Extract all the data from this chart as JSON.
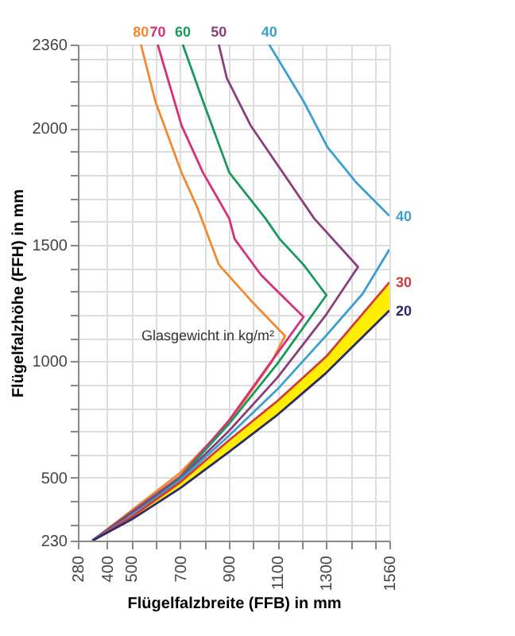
{
  "chart_data": {
    "type": "line",
    "xlabel": "Flügelfalzbreite (FFB) in mm",
    "ylabel": "Flügelfalzhöhe (FFH) in mm",
    "xlim": [
      280,
      1560
    ],
    "ylim": [
      230,
      2360
    ],
    "xticks": [
      280,
      400,
      500,
      {
        "value": 600,
        "label": null
      },
      700,
      {
        "value": 800,
        "label": null
      },
      900,
      {
        "value": 1000,
        "label": null
      },
      1100,
      {
        "value": 1200,
        "label": null
      },
      1300,
      {
        "value": 1400,
        "label": null
      },
      {
        "value": 1500,
        "label": null
      },
      1560
    ],
    "yticks": [
      230,
      {
        "value": 300,
        "label": null
      },
      {
        "value": 400,
        "label": null
      },
      500,
      {
        "value": 600,
        "label": null
      },
      {
        "value": 700,
        "label": null
      },
      {
        "value": 800,
        "label": null
      },
      {
        "value": 900,
        "label": null
      },
      1000,
      {
        "value": 1100,
        "label": null
      },
      {
        "value": 1200,
        "label": null
      },
      {
        "value": 1300,
        "label": null
      },
      {
        "value": 1400,
        "label": null
      },
      1500,
      {
        "value": 1600,
        "label": null
      },
      {
        "value": 1700,
        "label": null
      },
      {
        "value": 1800,
        "label": null
      },
      {
        "value": 1900,
        "label": null
      },
      2000,
      {
        "value": 2100,
        "label": null
      },
      {
        "value": 2200,
        "label": null
      },
      {
        "value": 2300,
        "label": null
      },
      2360
    ],
    "grid": true,
    "marker": "none",
    "line_style": "solid",
    "legend": false,
    "annotations": [
      "Glasgewicht in kg/m²"
    ],
    "series": [
      {
        "name": "80",
        "color": "#f28a30",
        "x": [
          539,
          598,
          706,
          772,
          859,
          990,
          1131,
          1077,
          902,
          696,
          340
        ],
        "values": [
          2360,
          2117,
          1810,
          1657,
          1415,
          1262,
          1109,
          999,
          736,
          517,
          230
        ]
      },
      {
        "name": "70",
        "color": "#d6307a",
        "x": [
          608,
          706,
          794,
          902,
          924,
          1033,
          1207,
          1100,
          900,
          700,
          340
        ],
        "values": [
          2360,
          2012,
          1810,
          1613,
          1525,
          1370,
          1190,
          1035,
          745,
          505,
          230
        ]
      },
      {
        "name": "60",
        "color": "#1a9a5a",
        "x": [
          711,
          794,
          902,
          1051,
          1109,
          1207,
          1301,
          1100,
          900,
          700,
          340
        ],
        "values": [
          2360,
          2117,
          1810,
          1613,
          1525,
          1415,
          1284,
          990,
          730,
          500,
          230
        ]
      },
      {
        "name": "50",
        "color": "#8a3f7a",
        "x": [
          859,
          892,
          990,
          1251,
          1431,
          1300,
          1100,
          900,
          700,
          340
        ],
        "values": [
          2360,
          2215,
          2012,
          1613,
          1405,
          1200,
          930,
          700,
          495,
          230
        ]
      },
      {
        "name": "40",
        "color": "#3aa0d0",
        "x": [
          1066,
          1207,
          1305,
          1425,
          1560
        ],
        "values": [
          2360,
          2117,
          1920,
          1766,
          1624
        ]
      },
      {
        "color": "#3aa0d0",
        "x": [
          1560,
          1450,
          1300,
          1100,
          900,
          700,
          500,
          340
        ],
        "values": [
          1480,
          1290,
          1110,
          880,
          680,
          490,
          335,
          230
        ]
      },
      {
        "name": "30",
        "color": "#d23b3b",
        "x": [
          340,
          500,
          700,
          900,
          1100,
          1300,
          1560
        ],
        "values": [
          230,
          330,
          480,
          660,
          830,
          1020,
          1339
        ],
        "lower": [
          230,
          320,
          455,
          610,
          770,
          950,
          1218
        ],
        "upper": [
          230,
          330,
          480,
          660,
          830,
          1020,
          1339
        ]
      },
      {
        "name": "20",
        "color": "#2c2c6c",
        "x": [
          340,
          500,
          700,
          900,
          1100,
          1300,
          1560
        ],
        "values": [
          230,
          320,
          455,
          610,
          770,
          950,
          1218
        ]
      }
    ]
  }
}
